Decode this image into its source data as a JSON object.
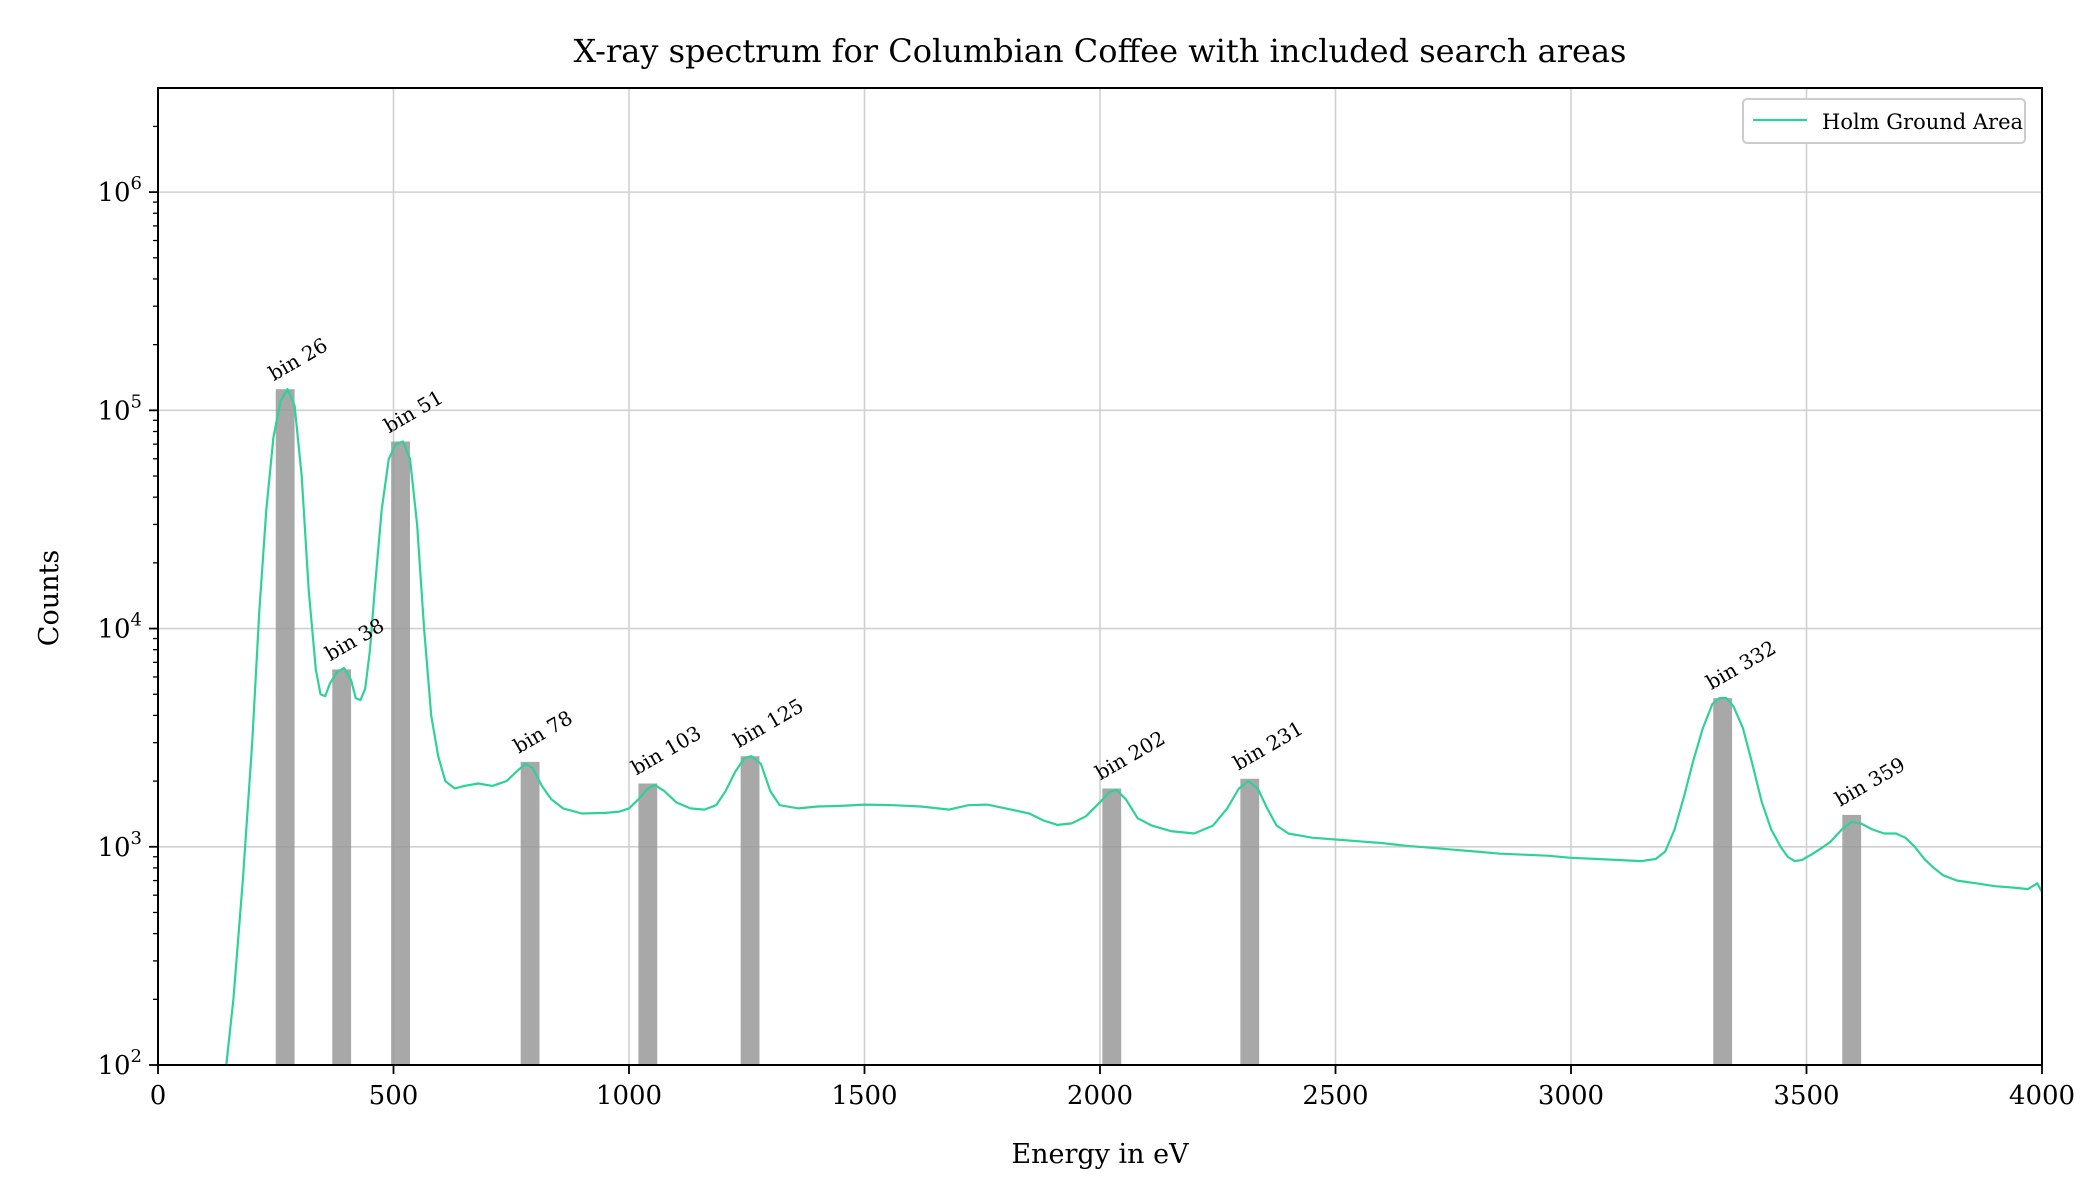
{
  "chart_data": {
    "type": "line",
    "title": "X-ray spectrum for Columbian Coffee with included search areas",
    "xlabel": "Energy in eV",
    "ylabel": "Counts",
    "xlim": [
      0,
      4000
    ],
    "ylim": [
      100,
      3000000
    ],
    "yscale": "log",
    "grid": true,
    "legend": {
      "placement": "top-right",
      "entries": [
        "Holm Ground Area"
      ]
    },
    "x_ticks": [
      "0",
      "500",
      "1000",
      "1500",
      "2000",
      "2500",
      "3000",
      "3500",
      "4000"
    ],
    "x_tick_values": [
      0,
      500,
      1000,
      1500,
      2000,
      2500,
      3000,
      3500,
      4000
    ],
    "y_ticks": [
      {
        "value": 100,
        "mantissa": "10",
        "exp": "2"
      },
      {
        "value": 1000,
        "mantissa": "10",
        "exp": "3"
      },
      {
        "value": 10000,
        "mantissa": "10",
        "exp": "4"
      },
      {
        "value": 100000,
        "mantissa": "10",
        "exp": "5"
      },
      {
        "value": 1000000,
        "mantissa": "10",
        "exp": "6"
      }
    ],
    "series": [
      {
        "name": "Holm Ground Area",
        "color": "#2fd296",
        "points": [
          [
            145,
            100
          ],
          [
            160,
            200
          ],
          [
            180,
            700
          ],
          [
            200,
            3000
          ],
          [
            215,
            12000
          ],
          [
            230,
            35000
          ],
          [
            245,
            75000
          ],
          [
            260,
            110000
          ],
          [
            275,
            125000
          ],
          [
            290,
            105000
          ],
          [
            305,
            50000
          ],
          [
            320,
            15000
          ],
          [
            335,
            6500
          ],
          [
            345,
            5000
          ],
          [
            355,
            4900
          ],
          [
            365,
            5600
          ],
          [
            380,
            6300
          ],
          [
            395,
            6600
          ],
          [
            410,
            5800
          ],
          [
            420,
            4800
          ],
          [
            430,
            4700
          ],
          [
            440,
            5300
          ],
          [
            450,
            8000
          ],
          [
            460,
            15000
          ],
          [
            475,
            35000
          ],
          [
            490,
            60000
          ],
          [
            505,
            70000
          ],
          [
            520,
            72000
          ],
          [
            535,
            60000
          ],
          [
            550,
            30000
          ],
          [
            565,
            10000
          ],
          [
            580,
            4000
          ],
          [
            595,
            2600
          ],
          [
            610,
            2000
          ],
          [
            630,
            1850
          ],
          [
            650,
            1900
          ],
          [
            680,
            1950
          ],
          [
            710,
            1900
          ],
          [
            740,
            2000
          ],
          [
            760,
            2200
          ],
          [
            780,
            2400
          ],
          [
            795,
            2300
          ],
          [
            815,
            1900
          ],
          [
            835,
            1650
          ],
          [
            860,
            1500
          ],
          [
            900,
            1420
          ],
          [
            950,
            1430
          ],
          [
            980,
            1450
          ],
          [
            1000,
            1500
          ],
          [
            1020,
            1650
          ],
          [
            1040,
            1850
          ],
          [
            1055,
            1920
          ],
          [
            1075,
            1800
          ],
          [
            1100,
            1600
          ],
          [
            1130,
            1500
          ],
          [
            1160,
            1480
          ],
          [
            1185,
            1550
          ],
          [
            1205,
            1800
          ],
          [
            1225,
            2200
          ],
          [
            1245,
            2550
          ],
          [
            1260,
            2600
          ],
          [
            1280,
            2400
          ],
          [
            1300,
            1800
          ],
          [
            1320,
            1550
          ],
          [
            1360,
            1500
          ],
          [
            1400,
            1530
          ],
          [
            1450,
            1540
          ],
          [
            1500,
            1560
          ],
          [
            1560,
            1550
          ],
          [
            1620,
            1530
          ],
          [
            1680,
            1480
          ],
          [
            1720,
            1550
          ],
          [
            1760,
            1560
          ],
          [
            1800,
            1500
          ],
          [
            1850,
            1420
          ],
          [
            1880,
            1320
          ],
          [
            1910,
            1260
          ],
          [
            1940,
            1280
          ],
          [
            1970,
            1380
          ],
          [
            2000,
            1600
          ],
          [
            2020,
            1780
          ],
          [
            2035,
            1820
          ],
          [
            2055,
            1650
          ],
          [
            2080,
            1350
          ],
          [
            2110,
            1250
          ],
          [
            2150,
            1180
          ],
          [
            2200,
            1150
          ],
          [
            2240,
            1250
          ],
          [
            2270,
            1500
          ],
          [
            2295,
            1850
          ],
          [
            2315,
            2000
          ],
          [
            2335,
            1850
          ],
          [
            2355,
            1500
          ],
          [
            2375,
            1250
          ],
          [
            2400,
            1150
          ],
          [
            2450,
            1100
          ],
          [
            2500,
            1080
          ],
          [
            2550,
            1060
          ],
          [
            2600,
            1040
          ],
          [
            2650,
            1010
          ],
          [
            2700,
            990
          ],
          [
            2750,
            970
          ],
          [
            2800,
            950
          ],
          [
            2850,
            930
          ],
          [
            2900,
            920
          ],
          [
            2950,
            910
          ],
          [
            3000,
            890
          ],
          [
            3050,
            880
          ],
          [
            3100,
            870
          ],
          [
            3150,
            860
          ],
          [
            3180,
            880
          ],
          [
            3200,
            950
          ],
          [
            3220,
            1200
          ],
          [
            3240,
            1700
          ],
          [
            3260,
            2500
          ],
          [
            3280,
            3500
          ],
          [
            3300,
            4500
          ],
          [
            3315,
            4800
          ],
          [
            3330,
            4800
          ],
          [
            3345,
            4400
          ],
          [
            3365,
            3500
          ],
          [
            3385,
            2400
          ],
          [
            3405,
            1600
          ],
          [
            3425,
            1200
          ],
          [
            3445,
            1000
          ],
          [
            3460,
            900
          ],
          [
            3475,
            860
          ],
          [
            3490,
            870
          ],
          [
            3510,
            920
          ],
          [
            3530,
            980
          ],
          [
            3550,
            1050
          ],
          [
            3575,
            1200
          ],
          [
            3595,
            1300
          ],
          [
            3615,
            1280
          ],
          [
            3640,
            1200
          ],
          [
            3665,
            1150
          ],
          [
            3690,
            1150
          ],
          [
            3710,
            1100
          ],
          [
            3730,
            1000
          ],
          [
            3750,
            880
          ],
          [
            3770,
            800
          ],
          [
            3790,
            740
          ],
          [
            3820,
            700
          ],
          [
            3860,
            680
          ],
          [
            3900,
            660
          ],
          [
            3940,
            650
          ],
          [
            3970,
            640
          ],
          [
            3990,
            680
          ],
          [
            4000,
            620
          ]
        ]
      }
    ],
    "search_areas": [
      {
        "label": "bin 26",
        "center": 270,
        "height": 125000
      },
      {
        "label": "bin 38",
        "center": 390,
        "height": 6500
      },
      {
        "label": "bin 51",
        "center": 515,
        "height": 72000
      },
      {
        "label": "bin 78",
        "center": 790,
        "height": 2450
      },
      {
        "label": "bin 103",
        "center": 1040,
        "height": 1950
      },
      {
        "label": "bin 125",
        "center": 1257,
        "height": 2600
      },
      {
        "label": "bin 202",
        "center": 2025,
        "height": 1850
      },
      {
        "label": "bin 231",
        "center": 2318,
        "height": 2050
      },
      {
        "label": "bin 332",
        "center": 3322,
        "height": 4800
      },
      {
        "label": "bin 359",
        "center": 3596,
        "height": 1400
      }
    ],
    "search_area_width": 40,
    "search_area_color": "#999999"
  }
}
